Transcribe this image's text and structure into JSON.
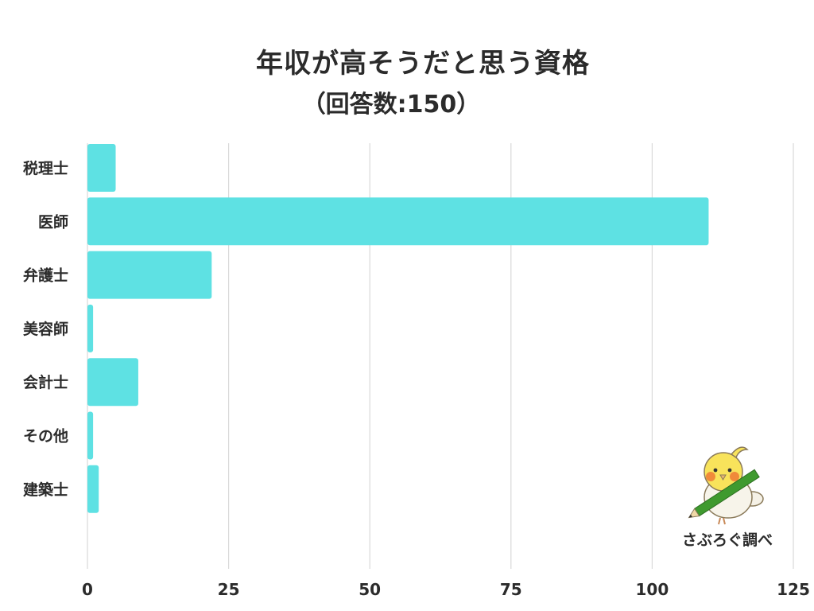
{
  "chart_data": {
    "type": "bar",
    "orientation": "horizontal",
    "title": "年収が高そうだと思う資格",
    "subtitle": "（回答数:150）",
    "categories": [
      "税理士",
      "医師",
      "弁護士",
      "美容師",
      "会計士",
      "その他",
      "建築士"
    ],
    "values": [
      5,
      110,
      22,
      1,
      9,
      1,
      2
    ],
    "xlim": [
      0,
      125
    ],
    "xticks": [
      "0",
      "25",
      "50",
      "75",
      "100",
      "125"
    ],
    "grid": true,
    "bar_color": "#5ee1e3",
    "grid_color": "#d9d9d9"
  },
  "credit": {
    "label": "さぶろぐ調べ",
    "mascot_icon": "bird-with-pencil-icon"
  }
}
